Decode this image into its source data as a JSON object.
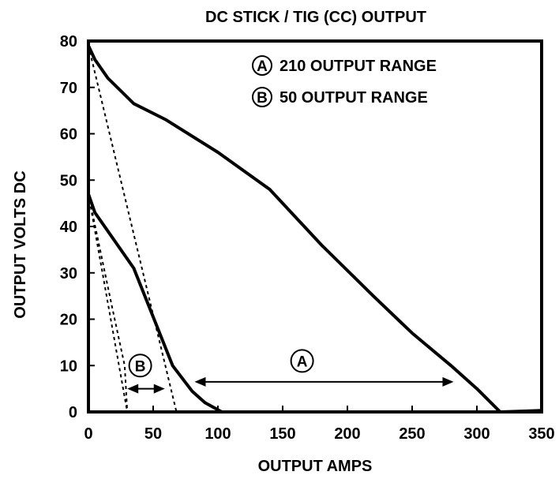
{
  "chart_data": {
    "type": "line",
    "title": "DC STICK / TIG (CC) OUTPUT",
    "xlabel": "OUTPUT AMPS",
    "ylabel": "OUTPUT VOLTS DC",
    "xlim": [
      0,
      350
    ],
    "ylim": [
      0,
      80
    ],
    "xticks": [
      "0",
      "50",
      "100",
      "150",
      "200",
      "250",
      "300",
      "350"
    ],
    "yticks": [
      "0",
      "10",
      "20",
      "30",
      "40",
      "50",
      "60",
      "70",
      "80"
    ],
    "grid": false,
    "legend_position": "top-right",
    "legend": [
      {
        "letter": "A",
        "text": "210 OUTPUT RANGE"
      },
      {
        "letter": "B",
        "text": "50 OUTPUT RANGE"
      }
    ],
    "series": [
      {
        "style": "thick",
        "points": [
          [
            0,
            79
          ],
          [
            5,
            76
          ],
          [
            15,
            72
          ],
          [
            35,
            66.5
          ],
          [
            60,
            63
          ],
          [
            100,
            56
          ],
          [
            140,
            48
          ],
          [
            180,
            36
          ],
          [
            220,
            25
          ],
          [
            250,
            17
          ],
          [
            280,
            10
          ],
          [
            300,
            5
          ],
          [
            318,
            0
          ],
          [
            350,
            0.3
          ]
        ]
      },
      {
        "style": "thick",
        "points": [
          [
            0,
            47
          ],
          [
            5,
            43
          ],
          [
            15,
            39
          ],
          [
            25,
            35
          ],
          [
            35,
            31
          ],
          [
            45,
            24
          ],
          [
            55,
            17
          ],
          [
            65,
            10
          ],
          [
            80,
            4.5
          ],
          [
            90,
            2
          ],
          [
            103,
            0
          ]
        ]
      },
      {
        "style": "dashed",
        "points": [
          [
            0,
            79
          ],
          [
            68,
            0
          ]
        ]
      },
      {
        "style": "dashed",
        "points": [
          [
            0,
            47
          ],
          [
            30,
            0
          ]
        ]
      },
      {
        "style": "dashed",
        "points": [
          [
            0,
            47
          ],
          [
            18,
            23
          ],
          [
            28,
            10
          ],
          [
            30,
            0
          ]
        ]
      }
    ],
    "annotations": [
      {
        "letter": "A",
        "x_start": 82,
        "x_end": 282,
        "y": 6.5,
        "label_x": 165,
        "label_y": 11
      },
      {
        "letter": "B",
        "x_start": 30,
        "x_end": 59,
        "y": 5,
        "label_x": 40,
        "label_y": 10
      }
    ]
  }
}
